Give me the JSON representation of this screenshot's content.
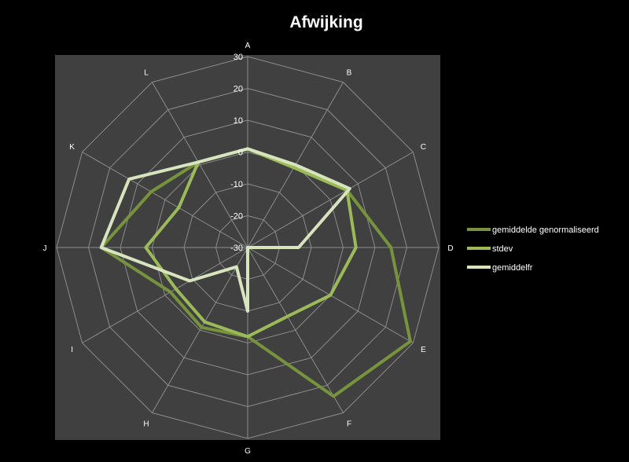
{
  "chart_data": {
    "type": "radar",
    "title": "Afwijking",
    "categories": [
      "A",
      "B",
      "C",
      "D",
      "E",
      "F",
      "G",
      "H",
      "I",
      "J",
      "K",
      "L"
    ],
    "rlim": [
      -30,
      30
    ],
    "ticks": [
      -30,
      -20,
      -10,
      0,
      10,
      20,
      30
    ],
    "grid": true,
    "legend_position": "right",
    "series": [
      {
        "name": "gemiddelde genormaliseerd",
        "color": "#77933c",
        "values": [
          1,
          -1,
          6,
          15,
          29,
          24,
          -2,
          -1,
          -2,
          16,
          5,
          1
        ]
      },
      {
        "name": "stdev",
        "color": "#9bbb59",
        "values": [
          1,
          -1,
          6,
          4,
          0,
          -5,
          -2,
          -3,
          -4,
          2,
          -5,
          1
        ]
      },
      {
        "name": "gemiddelfr",
        "color": "#d7e4bd",
        "values": [
          1,
          0,
          7,
          -14,
          -30,
          -30,
          -10,
          -23,
          -9,
          16,
          13,
          1
        ]
      }
    ],
    "background": "#000000",
    "plot_background": "#404040"
  }
}
